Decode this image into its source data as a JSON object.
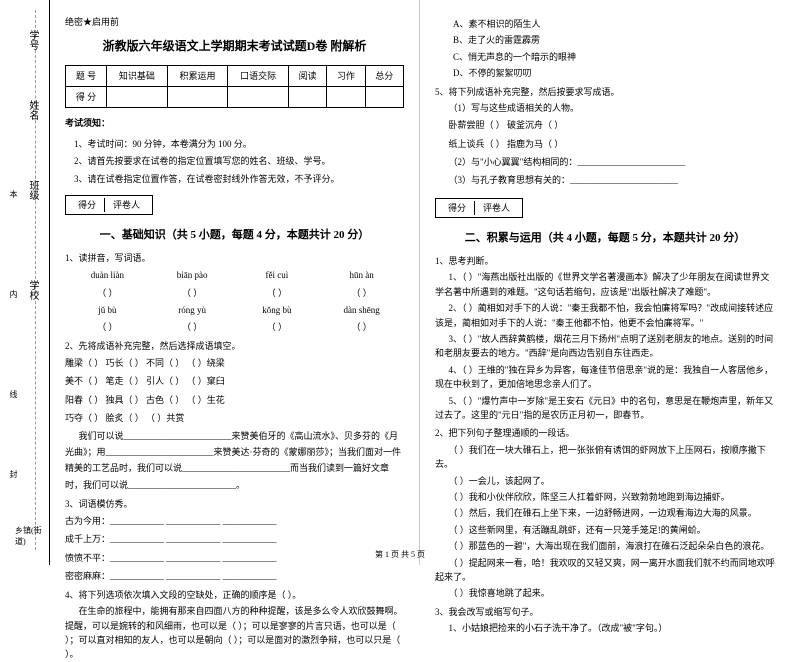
{
  "margin": {
    "l1": "学号",
    "l2": "姓名",
    "l3": "班级",
    "l4": "学校",
    "l7": "乡镇(街道)",
    "cm1": "本",
    "cm2": "内",
    "cm3": "线",
    "cm4": "封"
  },
  "left": {
    "secret": "绝密★启用前",
    "title": "浙教版六年级语文上学期期末考试试题D卷 附解析",
    "scoreTable": {
      "h1": "题 号",
      "h2": "知识基础",
      "h3": "积累运用",
      "h4": "口语交际",
      "h5": "阅读",
      "h6": "习作",
      "h7": "总分",
      "r1": "得 分"
    },
    "noticeTitle": "考试须知：",
    "notice1": "1、考试时间：90 分钟，本卷满分为 100 分。",
    "notice2": "2、请首先按要求在试卷的指定位置填写您的姓名、班级、学号。",
    "notice3": "3、请在试卷指定位置作答，在试卷密封线外作答无效，不予评分。",
    "scoreBox1": "得分",
    "scoreBox2": "评卷人",
    "part1Title": "一、基础知识（共 5 小题，每题 4 分，本题共计 20 分）",
    "q1": "1、读拼音，写词语。",
    "py": {
      "r1c1": "duàn liàn",
      "r1c2": "biān pào",
      "r1c3": "fěi cuì",
      "r1c4": "hūn àn",
      "r2c1": "jǔ bù",
      "r2c2": "róng yù",
      "r2c3": "kǒng bù",
      "r2c4": "dàn shēng"
    },
    "q2": "2、先将成语补充完整，然后选择成语填空。",
    "q2l1": "雕梁（  ）  巧长（  ）  不同（  ）  （  ）绕梁",
    "q2l2": "美不（  ）  笔走（  ）  引人（  ）  （  ）窠臼",
    "q2l3": "阳春（  ）  独具（  ）  古色（  ）  （  ）生花",
    "q2l4": "巧夺（  ）  脍炙（  ）  （  ）共赏",
    "q2p1": "我们可以说________________________来赞美伯牙的《高山流水》、贝多芬的《月光曲》；用________________________来赞美达·芬奇的《蒙娜丽莎》；当我们面对一件精美的工艺品时，我们可以说________________________而当我们读到一篇好文章时，我们可以说________________________。",
    "q3": "3、词语模仿秀。",
    "q3l1": "古为今用：____________  ____________  ____________",
    "q3l2": "成千上万：____________  ____________  ____________",
    "q3l3": "愤愤不平：____________  ____________  ____________",
    "q3l4": "密密麻麻：____________  ____________  ____________",
    "q4": "4、将下列选项依次填入文段的空缺处，正确的顺序是（  ）。",
    "q4p": "在生命的旅程中，能拥有那来自四面八方的种种提醒，该是多么令人欢欣鼓舞啊。提醒，可以是婉转的和风细雨，也可以是（  ）；可以是寥寥的片言只语，也可以是（  ）；可以直对相知的友人，也可以是朝向（  ）；可以是面对的激烈争辩，也可以只是（  ）。"
  },
  "right": {
    "optA": "A、素不相识的陌生人",
    "optB": "B、走了火的雷霆霹雳",
    "optC": "C、悄无声息的一个暗示的眼神",
    "optD": "D、不停的絮絮叨叨",
    "q5": "5、将下列成语补充完整，然后按要求写成语。",
    "q5s1": "（1）写与这些成语相关的人物。",
    "q5l1": "卧薪尝胆（          ）   破釜沉舟（          ）",
    "q5l2": "纸上谈兵（          ）   指鹿为马（          ）",
    "q5s2": "（2）与\"小心翼翼\"结构相同的：________________________",
    "q5s3": "（3）与孔子教育思想有关的：________________________",
    "scoreBox1": "得分",
    "scoreBox2": "评卷人",
    "part2Title": "二、积累与运用（共 4 小题，每题 5 分，本题共计 20 分）",
    "q1": "1、思考判断。",
    "q1i1": "1、（   ）\"海燕出版社出版的《世界文学名著漫画本》解决了少年朋友在阅读世界文学名著中所遇到的难题。\"这句话若缩句，应该是\"出版社解决了难题\"。",
    "q1i2": "2、（   ）蔺相如对手下的人说：\"秦王我都不怕，我会怕廉将军吗？\"改成间接转述应该是，蔺相如对手下的人说：\"秦王他都不怕，他更不会怕廉将军。\"",
    "q1i3": "3、（   ）\"故人西辞黄鹤楼，烟花三月下扬州\"点明了送别老朋友的地点。送别的时间和老朋友要去的地方。\"西辞\"是向西边告别自东往西走。",
    "q1i4": "4、（   ）王维的\"独在异乡为异客，每逢佳节倍思亲\"说的是：我独自一人客居他乡，现在中秋到了，更加倍地思念亲人们了。",
    "q1i5": "5、（   ）\"爆竹声中一岁除\"是王安石《元日》中的名句，意思是在鞭炮声里，新年又过去了。这里的\"元日\"指的是农历正月初一，即春节。",
    "q2": "2、把下列句子整理通顺的一段话。",
    "q2i1": "（ ）我们在一块大碓石上，把一张张俯有诱饵的虾网放下上压网石，按顺序撒下去。",
    "q2i2": "（ ）一会儿，该起网了。",
    "q2i3": "（ ）我和小伙伴欣欣，陈坚三人扛着虾网，兴致勃勃地跑到海边捕虾。",
    "q2i4": "（ ）然后，我们在碓石上坐下来，一边舒畅进网，一边观看海边大海的风景。",
    "q2i5": "（ ）这些新网里，有活蹦乱跳虾，还有一只笼手笼足!的黄闸蚧。",
    "q2i6": "（ ）那蓝色的一碧\"，大海出现在我们面前，海浪打在碓石泛起朵朵白色的浪花。",
    "q2i7": "（ ）提起网来一看，哈！我欢叹的又轻又爽，网一离开水面我们就不约而同地欢呼起来了。",
    "q2i8": "（ ）我惊喜地跳了起来。",
    "q3": "3、我会改写或缩写句子。",
    "q3i1": "1、小姑娘把捡来的小石子洗干净了。（改成\"被\"字句。）"
  },
  "footer": "第 1 页 共 5 页"
}
